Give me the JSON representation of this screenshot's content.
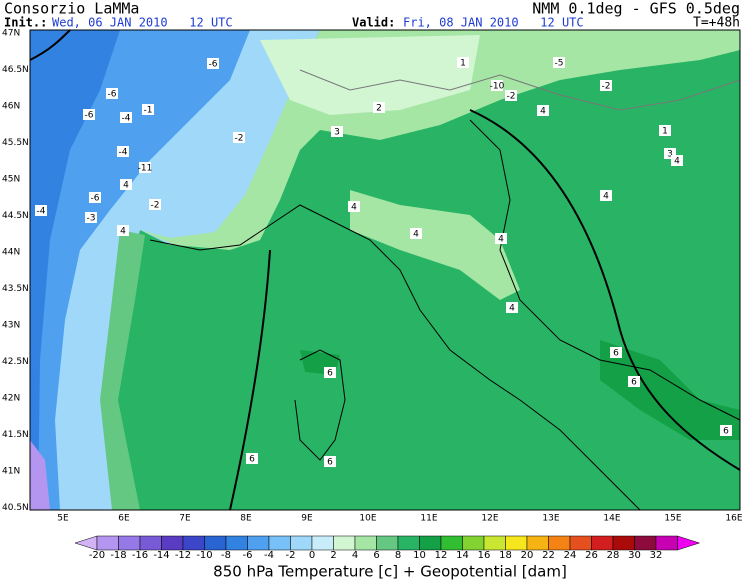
{
  "header": {
    "title": "Consorzio LaMMa",
    "model": "NMM 0.1deg - GFS 0.5deg",
    "init_label": "Init.:",
    "init": "Wed, 06 JAN 2010   12 UTC",
    "valid_label": "Valid:",
    "valid": "Fri, 08 JAN 2010   12 UTC",
    "lead": "T=+48h"
  },
  "map": {
    "lat_labels": [
      "47N",
      "46.5N",
      "46N",
      "45.5N",
      "45N",
      "44.5N",
      "44N",
      "43.5N",
      "43N",
      "42.5N",
      "42N",
      "41.5N",
      "41N",
      "40.5N"
    ],
    "lon_labels": [
      "5E",
      "6E",
      "7E",
      "8E",
      "9E",
      "10E",
      "11E",
      "12E",
      "13E",
      "14E",
      "15E",
      "16E"
    ],
    "contour_labels": [
      -6,
      -6,
      -6,
      -4,
      -11,
      -2,
      -1,
      -4,
      -6,
      -3,
      -2,
      -4,
      4,
      4,
      2,
      3,
      1,
      -10,
      -2,
      -5,
      -2,
      1,
      3,
      4,
      4,
      4,
      4,
      4,
      4,
      4,
      6,
      6,
      6,
      6,
      6,
      6
    ]
  },
  "colorbar": {
    "ticks": [
      -20,
      -18,
      -16,
      -14,
      -12,
      -10,
      -8,
      -6,
      -4,
      -2,
      0,
      2,
      4,
      6,
      8,
      10,
      12,
      14,
      16,
      18,
      20,
      22,
      24,
      26,
      28,
      30,
      32
    ],
    "colors": [
      "#d2b4f5",
      "#b496f0",
      "#9678e6",
      "#785ad7",
      "#5a3cc3",
      "#3c46c8",
      "#2864d2",
      "#3282e1",
      "#50a0f0",
      "#78c0f8",
      "#a0d8fa",
      "#c8ecfa",
      "#d2f5d2",
      "#a5e6a5",
      "#64c882",
      "#28b464",
      "#14a046",
      "#32be32",
      "#82d232",
      "#c8e632",
      "#f5e61e",
      "#f5b414",
      "#f58214",
      "#e6501e",
      "#d21e1e",
      "#aa0a0a",
      "#8c0a3c",
      "#c800b4",
      "#f000f0"
    ],
    "caption": "850 hPa Temperature [c] + Geopotential [dam]"
  }
}
